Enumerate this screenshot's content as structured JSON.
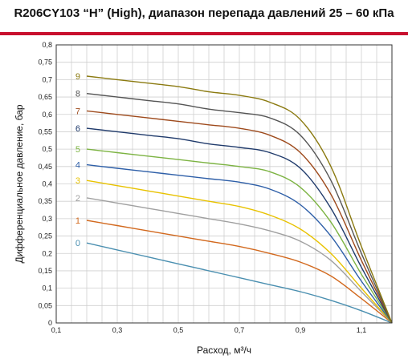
{
  "chart_data": {
    "type": "line",
    "title": "R206CY103 “H” (High), диапазон перепада давлений 25 – 60 кПа",
    "xlabel": "Расход, м³/ч",
    "ylabel": "Дифференциальное давление, бар",
    "xlim": [
      0.1,
      1.2
    ],
    "ylim": [
      0,
      0.8
    ],
    "x_ticks": [
      "0,1",
      "0,3",
      "0,5",
      "0,7",
      "0,9",
      "1,1"
    ],
    "x_tick_values": [
      0.1,
      0.3,
      0.5,
      0.7,
      0.9,
      1.1
    ],
    "y_ticks": [
      "0",
      "0,05",
      "0,1",
      "0,15",
      "0,2",
      "0,25",
      "0,3",
      "0,35",
      "0,4",
      "0,45",
      "0,5",
      "0,55",
      "0,6",
      "0,65",
      "0,7",
      "0,75",
      "0,8"
    ],
    "y_tick_values": [
      0,
      0.05,
      0.1,
      0.15,
      0.2,
      0.25,
      0.3,
      0.35,
      0.4,
      0.45,
      0.5,
      0.55,
      0.6,
      0.65,
      0.7,
      0.75,
      0.8
    ],
    "grid": true,
    "legend": "inline labels at left of each curve",
    "series": [
      {
        "name": "0",
        "color": "#4a8fb0",
        "x": [
          0.2,
          0.3,
          0.4,
          0.5,
          0.6,
          0.7,
          0.8,
          0.9,
          1.0,
          1.1,
          1.2
        ],
        "y": [
          0.23,
          0.21,
          0.19,
          0.17,
          0.15,
          0.13,
          0.11,
          0.09,
          0.065,
          0.035,
          0
        ]
      },
      {
        "name": "1",
        "color": "#d2691e",
        "x": [
          0.2,
          0.3,
          0.4,
          0.5,
          0.6,
          0.7,
          0.8,
          0.9,
          1.0,
          1.1,
          1.2
        ],
        "y": [
          0.295,
          0.28,
          0.265,
          0.25,
          0.235,
          0.22,
          0.2,
          0.175,
          0.135,
          0.07,
          0
        ]
      },
      {
        "name": "2",
        "color": "#a0a0a0",
        "x": [
          0.2,
          0.3,
          0.4,
          0.5,
          0.6,
          0.7,
          0.8,
          0.9,
          1.0,
          1.1,
          1.2
        ],
        "y": [
          0.36,
          0.345,
          0.33,
          0.315,
          0.3,
          0.285,
          0.265,
          0.235,
          0.18,
          0.09,
          0
        ]
      },
      {
        "name": "3",
        "color": "#e8c200",
        "x": [
          0.2,
          0.3,
          0.4,
          0.5,
          0.6,
          0.7,
          0.8,
          0.9,
          1.0,
          1.1,
          1.2
        ],
        "y": [
          0.41,
          0.395,
          0.38,
          0.365,
          0.35,
          0.335,
          0.31,
          0.27,
          0.2,
          0.1,
          0
        ]
      },
      {
        "name": "4",
        "color": "#2e5fa8",
        "x": [
          0.2,
          0.3,
          0.4,
          0.5,
          0.6,
          0.7,
          0.8,
          0.9,
          1.0,
          1.1,
          1.2
        ],
        "y": [
          0.455,
          0.445,
          0.435,
          0.425,
          0.415,
          0.405,
          0.385,
          0.34,
          0.25,
          0.12,
          0
        ]
      },
      {
        "name": "5",
        "color": "#7cb342",
        "x": [
          0.2,
          0.3,
          0.4,
          0.5,
          0.6,
          0.7,
          0.8,
          0.9,
          1.0,
          1.1,
          1.2
        ],
        "y": [
          0.5,
          0.49,
          0.48,
          0.47,
          0.46,
          0.45,
          0.435,
          0.39,
          0.29,
          0.14,
          0
        ]
      },
      {
        "name": "6",
        "color": "#1f3a6b",
        "x": [
          0.2,
          0.3,
          0.4,
          0.5,
          0.6,
          0.7,
          0.8,
          0.9,
          1.0,
          1.1,
          1.2
        ],
        "y": [
          0.56,
          0.55,
          0.54,
          0.53,
          0.515,
          0.505,
          0.49,
          0.445,
          0.33,
          0.16,
          0
        ]
      },
      {
        "name": "7",
        "color": "#9e4a1c",
        "x": [
          0.2,
          0.3,
          0.4,
          0.5,
          0.6,
          0.7,
          0.8,
          0.9,
          1.0,
          1.1,
          1.2
        ],
        "y": [
          0.61,
          0.6,
          0.59,
          0.58,
          0.57,
          0.56,
          0.54,
          0.49,
          0.37,
          0.18,
          0
        ]
      },
      {
        "name": "8",
        "color": "#555555",
        "x": [
          0.2,
          0.3,
          0.4,
          0.5,
          0.6,
          0.7,
          0.8,
          0.9,
          1.0,
          1.1,
          1.2
        ],
        "y": [
          0.66,
          0.65,
          0.64,
          0.63,
          0.615,
          0.605,
          0.59,
          0.54,
          0.41,
          0.2,
          0
        ]
      },
      {
        "name": "9",
        "color": "#8b7a10",
        "x": [
          0.2,
          0.3,
          0.4,
          0.5,
          0.6,
          0.7,
          0.8,
          0.9,
          1.0,
          1.1,
          1.2
        ],
        "y": [
          0.71,
          0.7,
          0.69,
          0.68,
          0.665,
          0.655,
          0.635,
          0.585,
          0.45,
          0.22,
          0
        ]
      }
    ]
  }
}
